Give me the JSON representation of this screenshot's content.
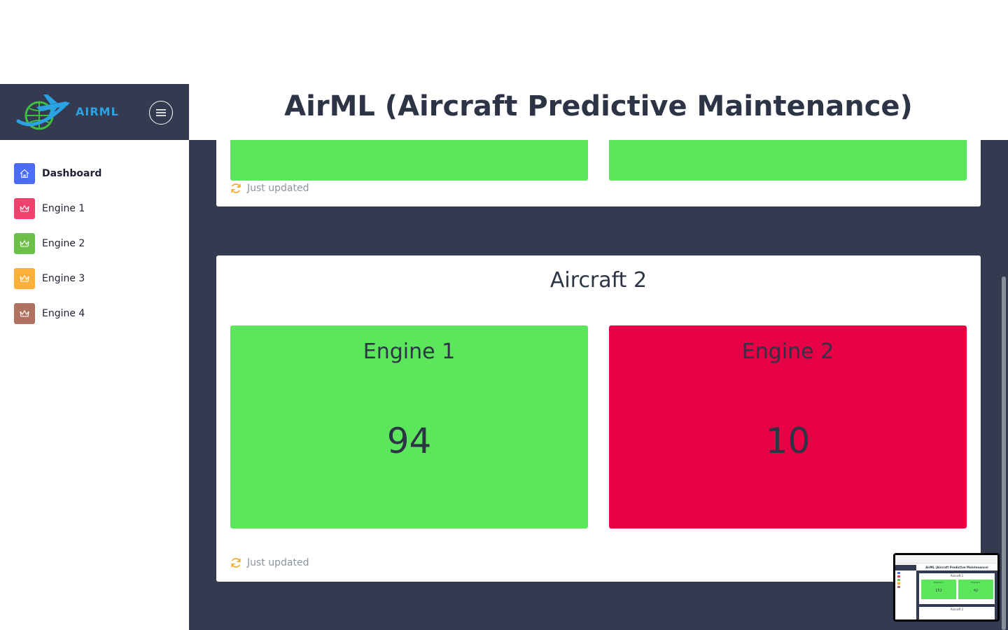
{
  "brand": {
    "name": "AIRML"
  },
  "header": {
    "title": "AirML (Aircraft Predictive Maintenance)"
  },
  "sidebar": {
    "items": [
      {
        "label": "Dashboard",
        "icon": "home-icon",
        "color": "#4a6cf7",
        "active": true
      },
      {
        "label": "Engine 1",
        "icon": "crown-icon",
        "color": "#f0426f"
      },
      {
        "label": "Engine 2",
        "icon": "crown-icon",
        "color": "#6cc04a"
      },
      {
        "label": "Engine 3",
        "icon": "crown-icon",
        "color": "#fbb03b"
      },
      {
        "label": "Engine 4",
        "icon": "crown-icon",
        "color": "#b07260"
      }
    ]
  },
  "aircraft_top": {
    "status": "Just updated"
  },
  "aircraft_2": {
    "title": "Aircraft 2",
    "status": "Just updated",
    "engines": [
      {
        "name": "Engine 1",
        "value": "94",
        "color": "#5ce65c"
      },
      {
        "name": "Engine 2",
        "value": "10",
        "color": "#e60045"
      }
    ]
  },
  "colors": {
    "sidebar_dark": "#343a4f",
    "ok": "#5ce65c",
    "alert": "#e60045",
    "brand_blue": "#2aa2e4"
  },
  "thumbnail": {
    "header_title": "AirML (Aircraft Predictive Maintenance)",
    "card_title": "Aircraft 1",
    "engines": [
      {
        "name": "Engine 1",
        "value": "152"
      },
      {
        "name": "Engine 2",
        "value": "42"
      }
    ],
    "next_title": "Aircraft 2"
  }
}
